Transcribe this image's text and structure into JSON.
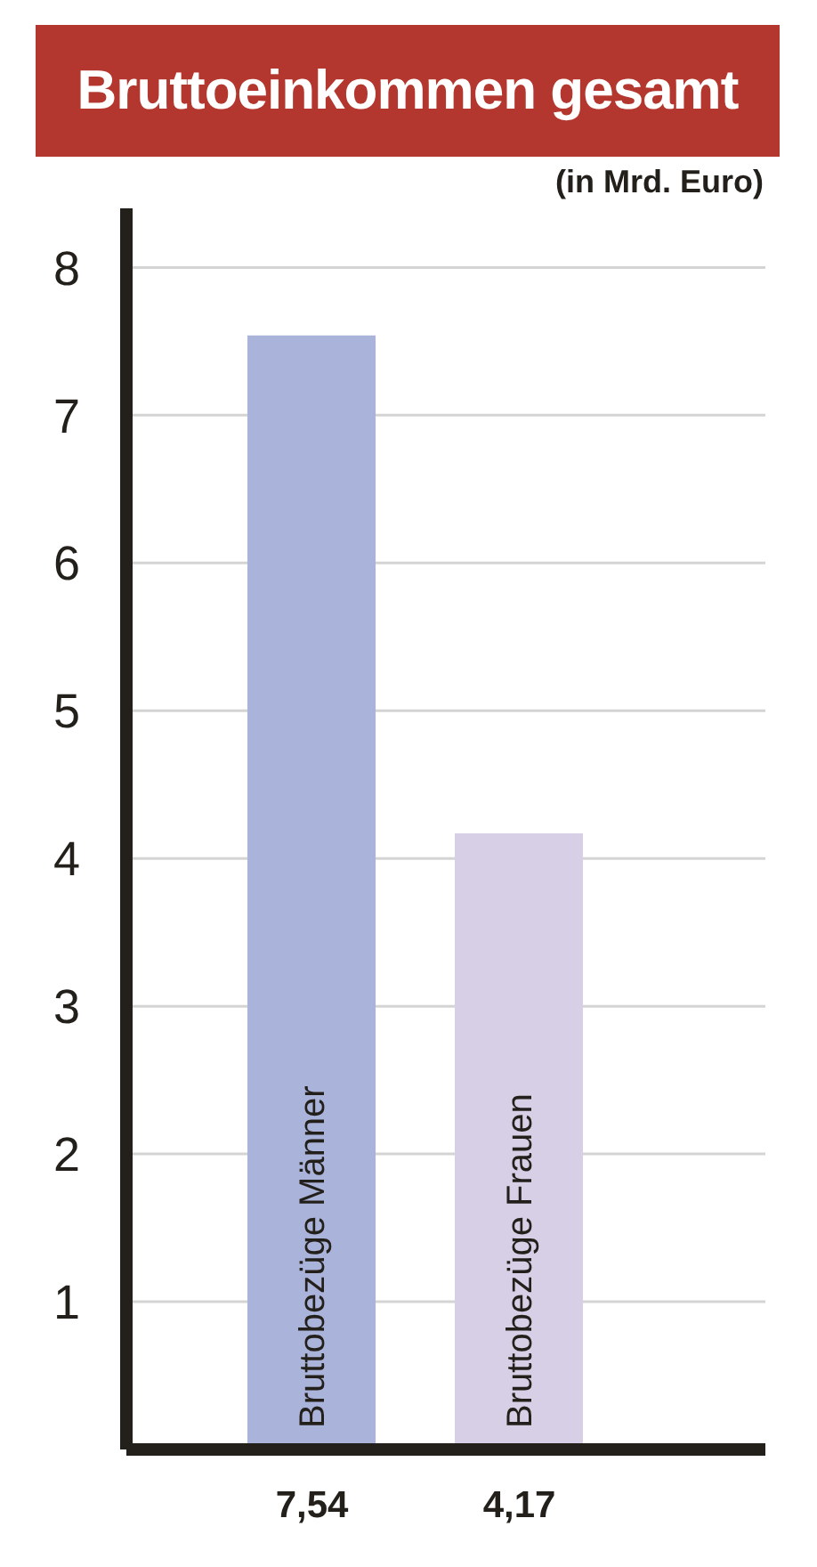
{
  "chart_data": {
    "type": "bar",
    "title": "Bruttoeinkommen gesamt",
    "subtitle": "(in Mrd. Euro)",
    "categories": [
      "Bruttobezüge Männer",
      "Bruttobezüge Frauen"
    ],
    "values": [
      7.54,
      4.17
    ],
    "value_labels": [
      "7,54",
      "4,17"
    ],
    "colors": [
      "#aab3da",
      "#d6cfe6"
    ],
    "ylim": [
      0,
      8.4
    ],
    "yticks": [
      {
        "value": 0,
        "label": null
      },
      1,
      2,
      3,
      4,
      5,
      6,
      7,
      8
    ],
    "grid": "y"
  }
}
